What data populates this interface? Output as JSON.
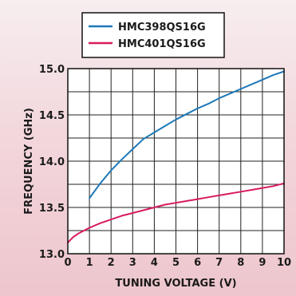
{
  "chart_data": {
    "type": "line",
    "xlabel": "TUNING VOLTAGE (V)",
    "ylabel": "FREQUENCY (GHz)",
    "xlim": [
      0,
      10
    ],
    "ylim": [
      13.0,
      15.0
    ],
    "x_ticks": [
      "0",
      "1",
      "2",
      "3",
      "4",
      "5",
      "6",
      "7",
      "8",
      "9",
      "10"
    ],
    "y_ticks": [
      "13.0",
      "13.5",
      "14.0",
      "14.5",
      "15.0"
    ],
    "grid": true,
    "legend_position": "top-center",
    "series": [
      {
        "name": "HMC398QS16G",
        "color": "#1e78b8",
        "x": [
          1,
          1.5,
          2,
          2.5,
          3,
          3.5,
          4,
          4.5,
          5,
          5.5,
          6,
          6.5,
          7,
          7.5,
          8,
          8.5,
          9,
          9.5,
          10
        ],
        "y": [
          13.6,
          13.76,
          13.9,
          14.02,
          14.13,
          14.24,
          14.31,
          14.38,
          14.45,
          14.51,
          14.57,
          14.62,
          14.68,
          14.73,
          14.78,
          14.83,
          14.88,
          14.93,
          14.97
        ]
      },
      {
        "name": "HMC401QS16G",
        "color": "#d81b60",
        "x": [
          0,
          0.25,
          0.5,
          1,
          1.5,
          2,
          2.5,
          3,
          3.5,
          4,
          4.5,
          5,
          5.5,
          6,
          6.5,
          7,
          7.5,
          8,
          8.5,
          9,
          9.5,
          10
        ],
        "y": [
          13.12,
          13.18,
          13.22,
          13.28,
          13.33,
          13.37,
          13.41,
          13.44,
          13.47,
          13.5,
          13.53,
          13.55,
          13.57,
          13.59,
          13.61,
          13.63,
          13.65,
          13.67,
          13.69,
          13.71,
          13.73,
          13.76
        ]
      }
    ]
  }
}
